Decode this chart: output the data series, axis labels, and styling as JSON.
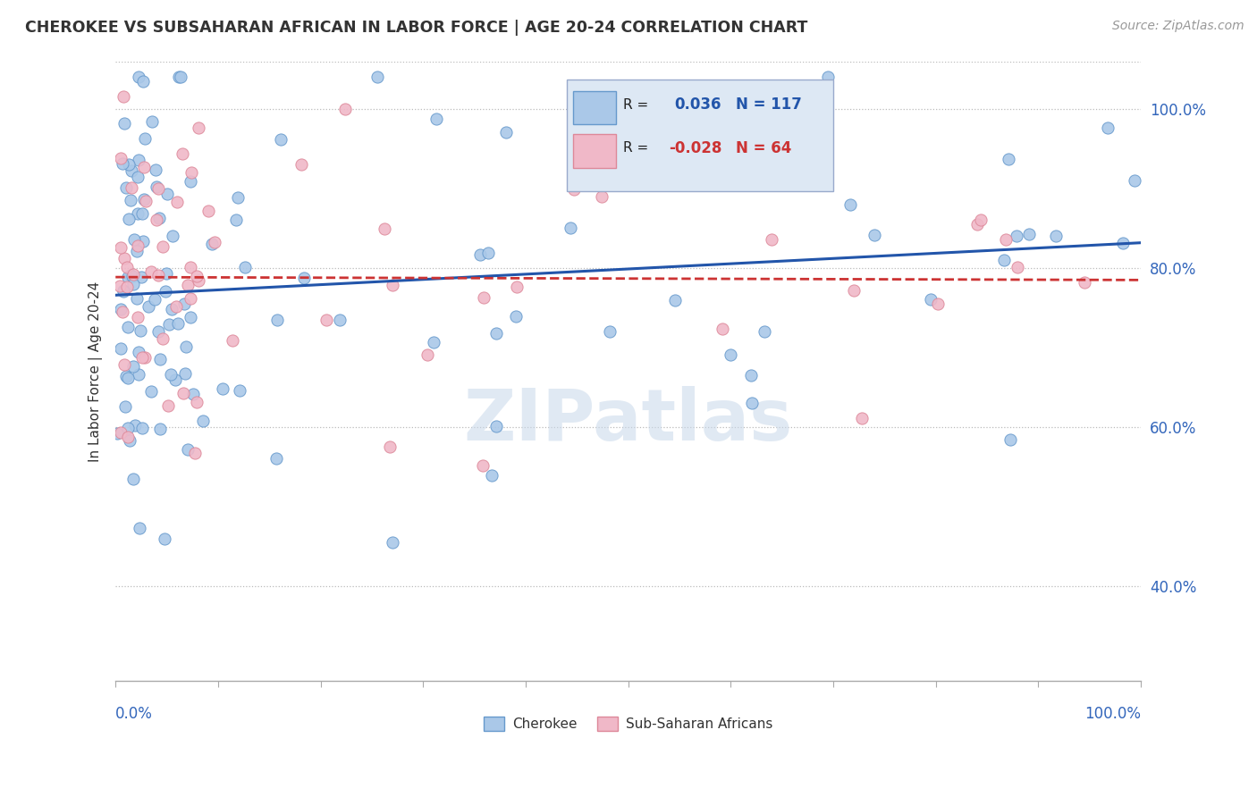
{
  "title": "CHEROKEE VS SUBSAHARAN AFRICAN IN LABOR FORCE | AGE 20-24 CORRELATION CHART",
  "source": "Source: ZipAtlas.com",
  "ylabel": "In Labor Force | Age 20-24",
  "xlim": [
    0.0,
    1.0
  ],
  "ylim": [
    0.28,
    1.06
  ],
  "yticks": [
    0.4,
    0.6,
    0.8,
    1.0
  ],
  "ytick_labels": [
    "40.0%",
    "60.0%",
    "80.0%",
    "100.0%"
  ],
  "cherokee_R": 0.036,
  "cherokee_N": 117,
  "subsaharan_R": -0.028,
  "subsaharan_N": 64,
  "cherokee_color": "#aac8e8",
  "cherokee_edge": "#6699cc",
  "subsaharan_color": "#f0b8c8",
  "subsaharan_edge": "#dd8899",
  "trend_cherokee_color": "#2255aa",
  "trend_subsaharan_color": "#cc3333",
  "watermark": "ZIPatlas",
  "seed_cherokee": 12345,
  "seed_subsaharan": 67890
}
